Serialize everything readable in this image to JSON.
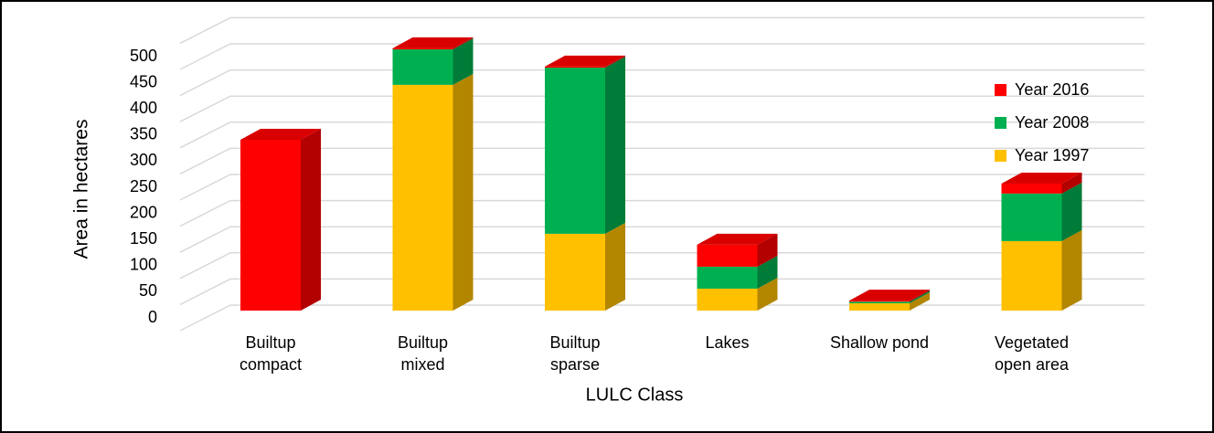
{
  "chart_data": {
    "type": "bar3d_stacked",
    "y_label": "Area in hectares",
    "x_label": "LULC Class",
    "categories": [
      "Builtup\ncompact",
      "Builtup\nmixed",
      "Builtup\nsparse",
      "Lakes",
      "Shallow pond",
      "Vegetated\nopen area"
    ],
    "series": [
      {
        "name": "Year 1997",
        "color": "#FFC000",
        "values": [
          0,
          432,
          147,
          42,
          14,
          133
        ]
      },
      {
        "name": "Year 2008",
        "color": "#00B050",
        "values": [
          0,
          68,
          318,
          42,
          3,
          91
        ]
      },
      {
        "name": "Year 2016",
        "color": "#FF0000",
        "values": [
          327,
          2,
          2,
          42,
          2,
          19
        ]
      }
    ],
    "ylim": [
      0,
      550
    ],
    "yticks": [
      0,
      50,
      100,
      150,
      200,
      250,
      300,
      350,
      400,
      450,
      500
    ],
    "grid": true,
    "legend": "right"
  }
}
